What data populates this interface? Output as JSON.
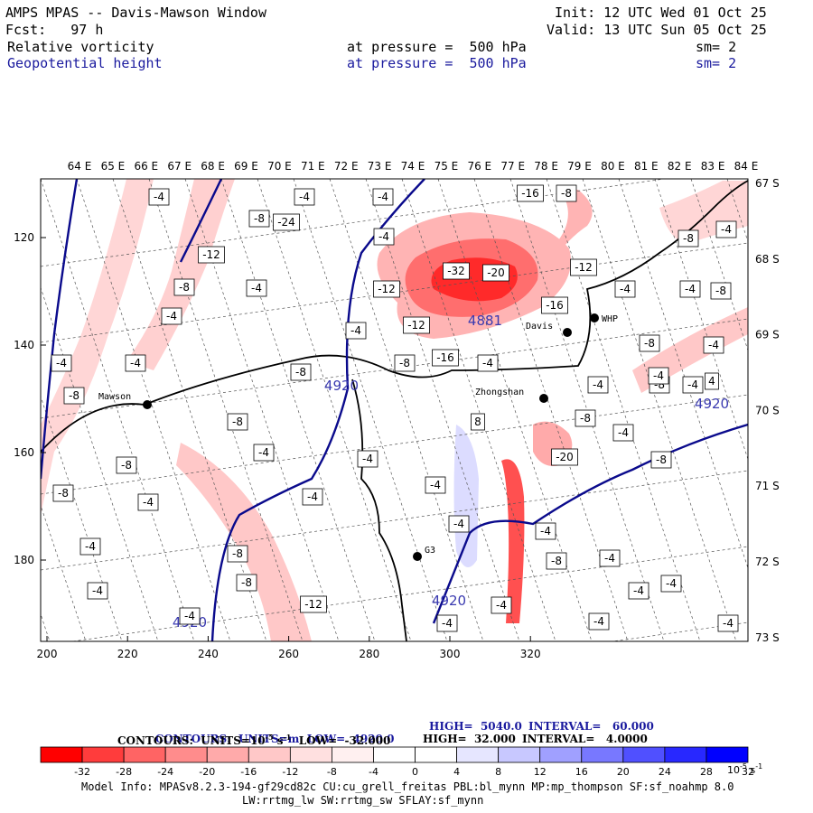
{
  "header": {
    "title": "AMPS MPAS -- Davis-Mawson Window",
    "init": "Init: 12 UTC Wed 01 Oct 25",
    "fcst": "Fcst:   97 h",
    "valid": "Valid: 13 UTC Sun 05 Oct 25",
    "field1": "Relative vorticity",
    "field1_level": "at pressure =  500 hPa",
    "field1_sm": "sm= 2",
    "field2": "Geopotential height",
    "field2_level": "at pressure =  500 hPa",
    "field2_sm": "sm= 2"
  },
  "map": {
    "lon_labels": [
      "64 E",
      "65 E",
      "66 E",
      "67 E",
      "68 E",
      "69 E",
      "70 E",
      "71 E",
      "72 E",
      "73 E",
      "74 E",
      "75 E",
      "76 E",
      "77 E",
      "78 E",
      "79 E",
      "80 E",
      "81 E",
      "82 E",
      "83 E",
      "84 E"
    ],
    "lat_labels": [
      "67 S",
      "68 S",
      "69 S",
      "70 S",
      "71 S",
      "72 S",
      "73 S"
    ],
    "x_ticks": [
      "200",
      "220",
      "240",
      "260",
      "280",
      "300",
      "320"
    ],
    "y_ticks": [
      "120",
      "140",
      "160",
      "180"
    ],
    "stations": [
      {
        "name": "Mawson"
      },
      {
        "name": "Davis"
      },
      {
        "name": "WHP"
      },
      {
        "name": "Zhongshan"
      },
      {
        "name": "G3"
      }
    ],
    "height_labels": [
      "4920",
      "4920",
      "4920",
      "4920",
      "4881"
    ],
    "vort_labels": [
      "-4",
      "-8",
      "-12",
      "-16",
      "-20",
      "-24",
      "-32",
      "4",
      "8"
    ]
  },
  "contour_info": {
    "line1_label": "CONTOURS:  UNITS=m  LOW=  4920.0",
    "line1_high": "HIGH=  5040.0",
    "line1_interval": "INTERVAL=   60.000",
    "line2_label": "CONTOURS:  UNITS=10",
    "line2_exp": "-5",
    "line2_unit": " s",
    "line2_exp2": "-1",
    "line2_low": "  LOW=  -32.000",
    "line2_high": "HIGH=  32.000",
    "line2_interval": "INTERVAL=   4.0000"
  },
  "colorbar": {
    "colors": [
      "#ff0000",
      "#ff3c3c",
      "#ff6464",
      "#ff8c8c",
      "#ffaaaa",
      "#ffc8c8",
      "#ffe0e0",
      "#fff0f0",
      "#ffffff",
      "#ffffff",
      "#e6e6ff",
      "#c8c8ff",
      "#a0a0ff",
      "#7878ff",
      "#5050ff",
      "#2828ff",
      "#0000ff"
    ],
    "tick_labels": [
      "-32",
      "-28",
      "-24",
      "-20",
      "-16",
      "-12",
      "-8",
      "-4",
      "0",
      "4",
      "8",
      "12",
      "16",
      "20",
      "24",
      "28",
      "32"
    ],
    "units": "10",
    "units_exp": "-5",
    "units_s": "s",
    "units_exp2": "-1"
  },
  "footer": {
    "line1": "Model Info: MPASv8.2.3-194-gf29cd82c CU:cu_grell_freitas PBL:bl_mynn MP:mp_thompson SF:sf_noahmp 8.0",
    "line2": "LW:rrtmg_lw SW:rrtmg_sw SFLAY:sf_mynn"
  },
  "colors": {
    "height_contour": "#0a0a8c",
    "vort_neg_strong": "#ff0000",
    "vort_pos": "#3c3cff"
  }
}
